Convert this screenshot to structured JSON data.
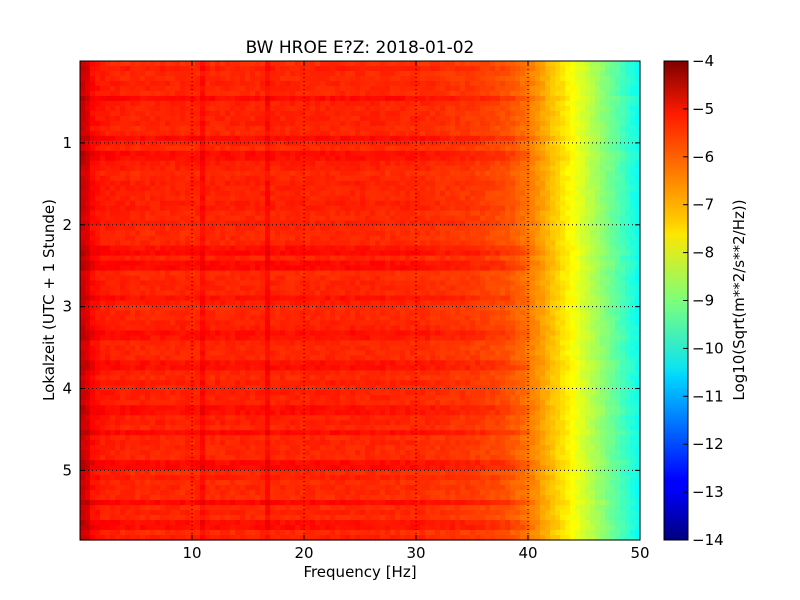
{
  "chart_data": {
    "type": "heatmap",
    "title": "BW HROE E?Z: 2018-01-02",
    "xlabel": "Frequency [Hz]",
    "ylabel": "Lokalzeit (UTC + 1 Stunde)",
    "xlim": [
      0,
      50
    ],
    "ylim": [
      5.85,
      0
    ],
    "xticks": [
      10,
      20,
      30,
      40,
      50
    ],
    "yticks": [
      1,
      2,
      3,
      4,
      5
    ],
    "grid": true,
    "colormap": "jet",
    "colorbar": {
      "label": "Log10(Sqrt(m**2/s**2/Hz))",
      "range": [
        -14,
        -4
      ],
      "ticks": [
        -4,
        -5,
        -6,
        -7,
        -8,
        -9,
        -10,
        -11,
        -12,
        -13,
        -14
      ]
    },
    "spectral_profile": {
      "frequency_hz": [
        0,
        1,
        2,
        5,
        10,
        15,
        20,
        25,
        30,
        35,
        38,
        40,
        42,
        44,
        46,
        48,
        50
      ],
      "log10_amplitude": [
        -5.0,
        -5.3,
        -5.5,
        -5.6,
        -5.6,
        -5.6,
        -5.6,
        -5.6,
        -5.65,
        -5.8,
        -6.0,
        -6.4,
        -7.1,
        -7.8,
        -8.6,
        -9.4,
        -10.2
      ]
    },
    "features": {
      "vertical_lines_hz": [
        0.5,
        11,
        16.7
      ],
      "strong_rows_hours": [
        0.45,
        0.95,
        1.15,
        2.3,
        2.5,
        2.9,
        3.35,
        3.7,
        4.25,
        4.55,
        4.95,
        5.4,
        5.65
      ]
    }
  }
}
